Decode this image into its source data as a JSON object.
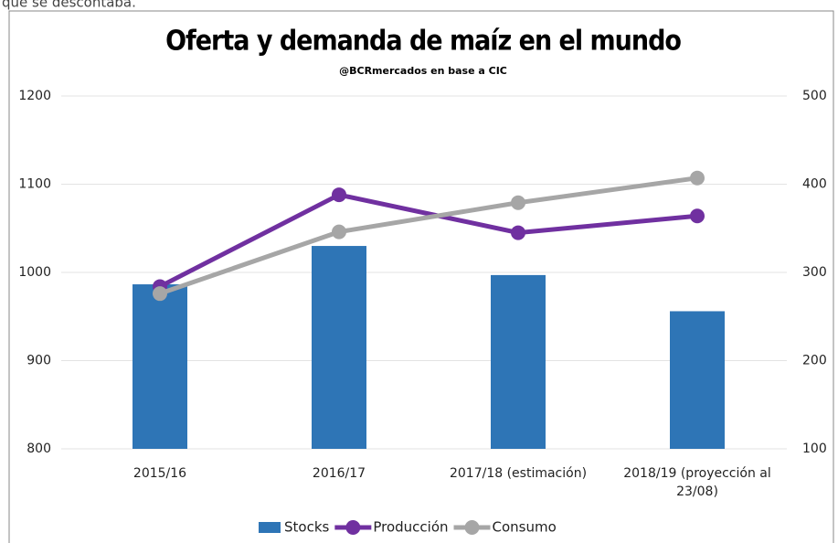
{
  "intro_text": "que se descontaba.",
  "chart_data": {
    "type": "bar_line",
    "title": "Oferta y demanda de maíz en el mundo",
    "subtitle": "@BCRmercados en base a CIC",
    "categories": [
      "2015/16",
      "2016/17",
      "2017/18 (estimación)",
      "2018/19 (proyección al 23/08)"
    ],
    "series": [
      {
        "name": "Stocks",
        "type": "bar",
        "color": "#2e75b6",
        "axis": "y2",
        "values": [
          286.5,
          330,
          297,
          256
        ]
      },
      {
        "name": "Producción",
        "type": "line",
        "color": "#7030a0",
        "values": [
          984,
          1088,
          1045,
          1064
        ]
      },
      {
        "name": "Consumo",
        "type": "line",
        "color": "#a6a6a6",
        "values": [
          976,
          1046,
          1079,
          1107
        ]
      }
    ],
    "ylim": [
      800,
      1200
    ],
    "yticks": [
      800,
      900,
      1000,
      1100,
      1200
    ],
    "y2lim": [
      100,
      500
    ],
    "y2ticks": [
      100,
      200,
      300,
      400,
      500
    ],
    "grid": true,
    "legend": "bottom"
  }
}
